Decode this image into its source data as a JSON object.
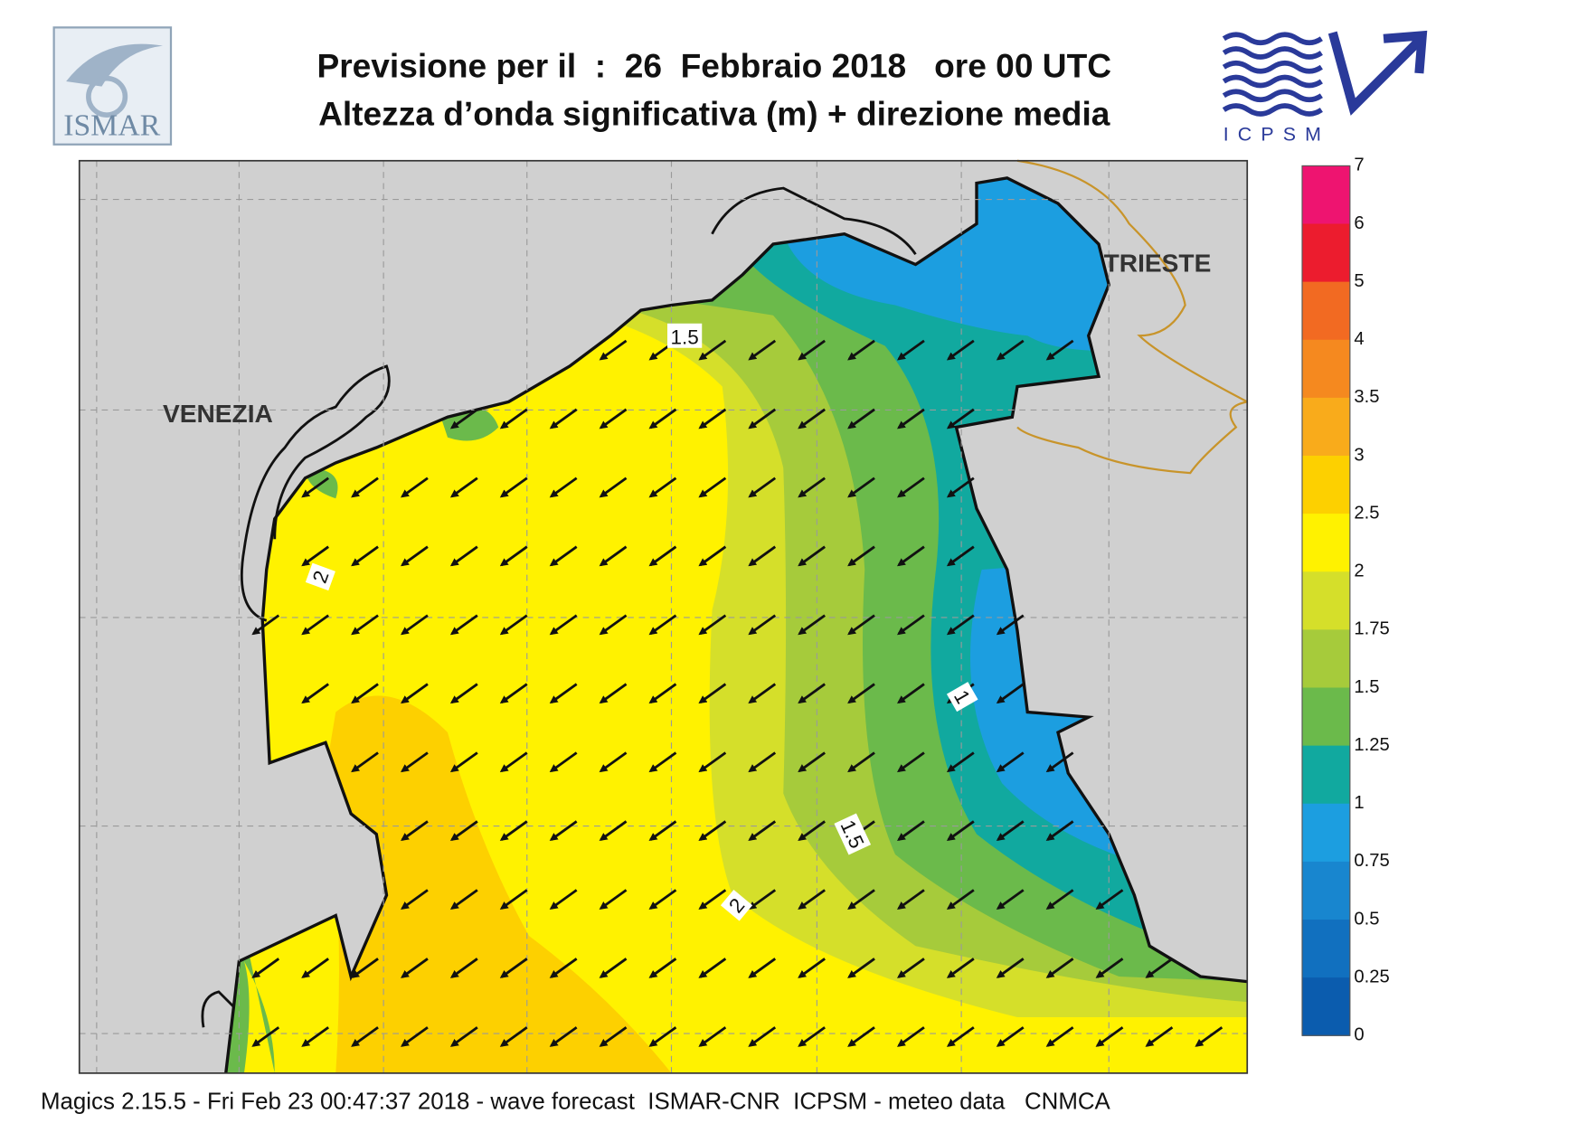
{
  "header": {
    "title_line1": "Previsione per il  :  26  Febbraio 2018   ore 00 UTC",
    "title_line2": "Altezza d’onda significativa (m) + direzione media",
    "logo_left": "ISMAR",
    "logo_right": "ICPSM"
  },
  "map": {
    "cities": [
      "VENEZIA",
      "TRIESTE"
    ],
    "contour_labels": [
      "1.5",
      "2",
      "1",
      "1.5",
      "2"
    ]
  },
  "colorbar": {
    "levels": [
      "7",
      "6",
      "5",
      "4",
      "3.5",
      "3",
      "2.5",
      "2",
      "1.75",
      "1.5",
      "1.25",
      "1",
      "0.75",
      "0.5",
      "0.25",
      "0"
    ],
    "colors": [
      "#ee1470",
      "#ec1c2e",
      "#f26a22",
      "#f5891f",
      "#f9ab1b",
      "#fdd000",
      "#fff200",
      "#d5df2a",
      "#a6cb3b",
      "#6bba4b",
      "#11a99f",
      "#1c9ee0",
      "#1886cf",
      "#1170bf",
      "#0b5cae"
    ]
  },
  "footer": "Magics 2.15.5 - Fri Feb 23 00:47:37 2018 - wave forecast  ISMAR-CNR  ICPSM - meteo data   CNMCA"
}
